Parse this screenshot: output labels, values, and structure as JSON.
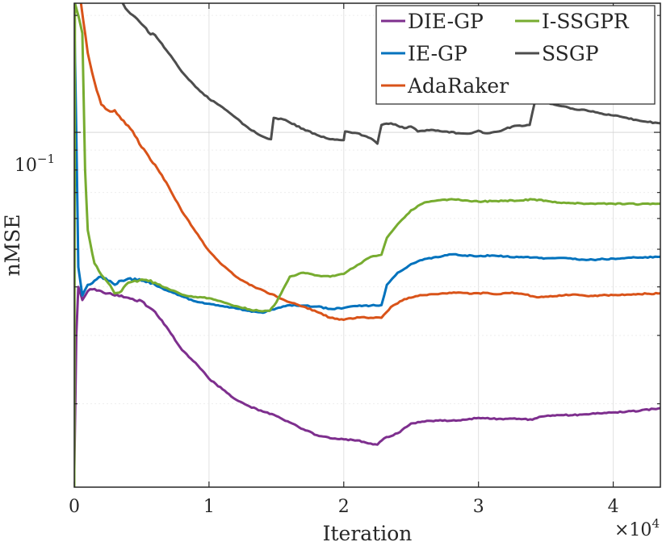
{
  "chart_data": {
    "type": "line",
    "xlabel": "Iteration",
    "ylabel": "nMSE",
    "x_scale_exponent_label": "×10",
    "x_scale_exponent": "4",
    "x_tick_values": [
      0,
      10000,
      20000,
      30000,
      40000
    ],
    "x_tick_labels": [
      "0",
      "1",
      "2",
      "3",
      "4"
    ],
    "y_tick_base": "10",
    "y_tick_exponent": "−1",
    "y_scale": "log",
    "xlim": [
      0,
      43500
    ],
    "ylim": [
      0.0122,
      0.215
    ],
    "grid": true,
    "legend_position": "top-right",
    "series": [
      {
        "name": "DIE-GP",
        "color": "#7E2F8E",
        "points": [
          [
            0,
            0.0135
          ],
          [
            150,
            0.03
          ],
          [
            300,
            0.04
          ],
          [
            600,
            0.037
          ],
          [
            1000,
            0.039
          ],
          [
            1500,
            0.0395
          ],
          [
            2000,
            0.039
          ],
          [
            2500,
            0.0385
          ],
          [
            3000,
            0.038
          ],
          [
            3500,
            0.038
          ],
          [
            4000,
            0.0375
          ],
          [
            5000,
            0.0368
          ],
          [
            5500,
            0.0355
          ],
          [
            6000,
            0.0345
          ],
          [
            7000,
            0.031
          ],
          [
            8000,
            0.0275
          ],
          [
            9000,
            0.0255
          ],
          [
            10000,
            0.0232
          ],
          [
            11000,
            0.0218
          ],
          [
            12000,
            0.0205
          ],
          [
            13000,
            0.0197
          ],
          [
            14000,
            0.0191
          ],
          [
            15000,
            0.0186
          ],
          [
            16000,
            0.0179
          ],
          [
            17000,
            0.0172
          ],
          [
            18000,
            0.0166
          ],
          [
            19000,
            0.0163
          ],
          [
            20000,
            0.0162
          ],
          [
            21000,
            0.0161
          ],
          [
            22000,
            0.0158
          ],
          [
            22500,
            0.0157
          ],
          [
            23000,
            0.0163
          ],
          [
            24000,
            0.0168
          ],
          [
            25000,
            0.0178
          ],
          [
            26000,
            0.018
          ],
          [
            27000,
            0.0181
          ],
          [
            28000,
            0.0181
          ],
          [
            29000,
            0.0182
          ],
          [
            30000,
            0.0184
          ],
          [
            31000,
            0.0183
          ],
          [
            32000,
            0.0183
          ],
          [
            33000,
            0.0183
          ],
          [
            34000,
            0.0182
          ],
          [
            34500,
            0.0185
          ],
          [
            35000,
            0.0186
          ],
          [
            36000,
            0.0187
          ],
          [
            37000,
            0.0187
          ],
          [
            38000,
            0.0188
          ],
          [
            39000,
            0.0189
          ],
          [
            40000,
            0.019
          ],
          [
            41000,
            0.0191
          ],
          [
            42000,
            0.0192
          ],
          [
            43000,
            0.0194
          ],
          [
            43500,
            0.0195
          ]
        ]
      },
      {
        "name": "IE-GP",
        "color": "#0072BD",
        "points": [
          [
            0,
            0.2
          ],
          [
            150,
            0.1
          ],
          [
            300,
            0.045
          ],
          [
            600,
            0.038
          ],
          [
            1000,
            0.0405
          ],
          [
            1500,
            0.0415
          ],
          [
            2000,
            0.0425
          ],
          [
            2500,
            0.0415
          ],
          [
            3000,
            0.0405
          ],
          [
            3500,
            0.0415
          ],
          [
            4000,
            0.042
          ],
          [
            5000,
            0.0415
          ],
          [
            6000,
            0.0405
          ],
          [
            7000,
            0.039
          ],
          [
            8000,
            0.0378
          ],
          [
            9000,
            0.0367
          ],
          [
            10000,
            0.0362
          ],
          [
            11000,
            0.0357
          ],
          [
            12000,
            0.0352
          ],
          [
            13000,
            0.0347
          ],
          [
            14000,
            0.0343
          ],
          [
            15000,
            0.0352
          ],
          [
            16000,
            0.0359
          ],
          [
            17000,
            0.0358
          ],
          [
            18000,
            0.0356
          ],
          [
            19000,
            0.0351
          ],
          [
            20000,
            0.0353
          ],
          [
            21000,
            0.0357
          ],
          [
            22000,
            0.0358
          ],
          [
            22800,
            0.0359
          ],
          [
            23200,
            0.0405
          ],
          [
            24000,
            0.0435
          ],
          [
            25000,
            0.0458
          ],
          [
            26000,
            0.0472
          ],
          [
            27000,
            0.0477
          ],
          [
            28000,
            0.0485
          ],
          [
            29000,
            0.0482
          ],
          [
            30000,
            0.048
          ],
          [
            31000,
            0.0482
          ],
          [
            32000,
            0.0479
          ],
          [
            33000,
            0.0477
          ],
          [
            34000,
            0.0476
          ],
          [
            35000,
            0.0474
          ],
          [
            36000,
            0.0475
          ],
          [
            37000,
            0.0472
          ],
          [
            38000,
            0.0469
          ],
          [
            39000,
            0.0471
          ],
          [
            40000,
            0.0473
          ],
          [
            41000,
            0.0475
          ],
          [
            42000,
            0.0476
          ],
          [
            43500,
            0.0478
          ]
        ]
      },
      {
        "name": "AdaRaker",
        "color": "#D95319",
        "points": [
          [
            500,
            0.215
          ],
          [
            1000,
            0.16
          ],
          [
            1500,
            0.135
          ],
          [
            2000,
            0.118
          ],
          [
            2500,
            0.114
          ],
          [
            3000,
            0.114
          ],
          [
            3500,
            0.108
          ],
          [
            4000,
            0.104
          ],
          [
            4500,
            0.098
          ],
          [
            5000,
            0.0915
          ],
          [
            5500,
            0.087
          ],
          [
            6000,
            0.0825
          ],
          [
            7000,
            0.0725
          ],
          [
            8000,
            0.0625
          ],
          [
            9000,
            0.0555
          ],
          [
            10000,
            0.0495
          ],
          [
            11000,
            0.0455
          ],
          [
            12000,
            0.0425
          ],
          [
            13000,
            0.0405
          ],
          [
            14000,
            0.0392
          ],
          [
            15000,
            0.0378
          ],
          [
            16000,
            0.0365
          ],
          [
            17000,
            0.0356
          ],
          [
            18000,
            0.0345
          ],
          [
            19000,
            0.0333
          ],
          [
            20000,
            0.0329
          ],
          [
            21000,
            0.0334
          ],
          [
            22000,
            0.0333
          ],
          [
            22800,
            0.0333
          ],
          [
            23500,
            0.0355
          ],
          [
            24500,
            0.0372
          ],
          [
            25500,
            0.0379
          ],
          [
            26500,
            0.0383
          ],
          [
            27500,
            0.0385
          ],
          [
            28500,
            0.0387
          ],
          [
            29500,
            0.0384
          ],
          [
            30500,
            0.0386
          ],
          [
            31500,
            0.0383
          ],
          [
            32500,
            0.0387
          ],
          [
            33500,
            0.0382
          ],
          [
            34500,
            0.0376
          ],
          [
            35500,
            0.0378
          ],
          [
            36500,
            0.0382
          ],
          [
            37500,
            0.0381
          ],
          [
            38500,
            0.0379
          ],
          [
            39500,
            0.0381
          ],
          [
            40500,
            0.0381
          ],
          [
            41500,
            0.0383
          ],
          [
            42500,
            0.0384
          ],
          [
            43500,
            0.0385
          ]
        ]
      },
      {
        "name": "I-SSGPR",
        "color": "#77AC30",
        "points": [
          [
            0,
            0.0122
          ],
          [
            50,
            0.215
          ],
          [
            300,
            0.2
          ],
          [
            600,
            0.18
          ],
          [
            800,
            0.08
          ],
          [
            1000,
            0.056
          ],
          [
            1500,
            0.046
          ],
          [
            2000,
            0.043
          ],
          [
            2500,
            0.041
          ],
          [
            3000,
            0.0385
          ],
          [
            3500,
            0.039
          ],
          [
            4000,
            0.041
          ],
          [
            4500,
            0.0415
          ],
          [
            5000,
            0.0418
          ],
          [
            6000,
            0.041
          ],
          [
            7000,
            0.0395
          ],
          [
            8000,
            0.0382
          ],
          [
            9000,
            0.0377
          ],
          [
            10000,
            0.0374
          ],
          [
            11000,
            0.0366
          ],
          [
            12000,
            0.0357
          ],
          [
            13000,
            0.035
          ],
          [
            14000,
            0.0346
          ],
          [
            14500,
            0.0347
          ],
          [
            15000,
            0.0365
          ],
          [
            16000,
            0.0425
          ],
          [
            17000,
            0.0435
          ],
          [
            18000,
            0.0428
          ],
          [
            19000,
            0.0425
          ],
          [
            20000,
            0.0432
          ],
          [
            21000,
            0.0455
          ],
          [
            22000,
            0.0478
          ],
          [
            22800,
            0.0484
          ],
          [
            23200,
            0.0535
          ],
          [
            24000,
            0.058
          ],
          [
            25000,
            0.063
          ],
          [
            26000,
            0.066
          ],
          [
            27000,
            0.0668
          ],
          [
            28000,
            0.0673
          ],
          [
            29000,
            0.0668
          ],
          [
            30000,
            0.0663
          ],
          [
            31000,
            0.0665
          ],
          [
            32000,
            0.0667
          ],
          [
            33000,
            0.0667
          ],
          [
            34000,
            0.0672
          ],
          [
            35000,
            0.0667
          ],
          [
            36000,
            0.0659
          ],
          [
            37000,
            0.0657
          ],
          [
            38000,
            0.0655
          ],
          [
            39000,
            0.0656
          ],
          [
            40000,
            0.0655
          ],
          [
            41000,
            0.0655
          ],
          [
            42000,
            0.0653
          ],
          [
            43500,
            0.0655
          ]
        ]
      },
      {
        "name": "SSGP",
        "color": "#4D4D4D",
        "points": [
          [
            3600,
            0.215
          ],
          [
            4000,
            0.205
          ],
          [
            5000,
            0.19
          ],
          [
            5500,
            0.181
          ],
          [
            6000,
            0.178
          ],
          [
            7000,
            0.16
          ],
          [
            8000,
            0.143
          ],
          [
            9000,
            0.131
          ],
          [
            10000,
            0.122
          ],
          [
            11000,
            0.116
          ],
          [
            12000,
            0.109
          ],
          [
            13000,
            0.102
          ],
          [
            14000,
            0.0975
          ],
          [
            14600,
            0.096
          ],
          [
            14800,
            0.109
          ],
          [
            15500,
            0.108
          ],
          [
            16000,
            0.106
          ],
          [
            17000,
            0.102
          ],
          [
            18000,
            0.0985
          ],
          [
            19000,
            0.096
          ],
          [
            20000,
            0.0955
          ],
          [
            20100,
            0.1005
          ],
          [
            21000,
            0.0995
          ],
          [
            22000,
            0.0965
          ],
          [
            22500,
            0.0935
          ],
          [
            22800,
            0.1045
          ],
          [
            23500,
            0.1055
          ],
          [
            24500,
            0.1025
          ],
          [
            25000,
            0.1035
          ],
          [
            25500,
            0.1005
          ],
          [
            26500,
            0.1015
          ],
          [
            27500,
            0.1005
          ],
          [
            28500,
            0.0995
          ],
          [
            29500,
            0.0995
          ],
          [
            30000,
            0.101
          ],
          [
            30500,
            0.0995
          ],
          [
            31500,
            0.1005
          ],
          [
            32500,
            0.1035
          ],
          [
            33800,
            0.1045
          ],
          [
            34200,
            0.1205
          ],
          [
            35000,
            0.1195
          ],
          [
            36000,
            0.117
          ],
          [
            37000,
            0.115
          ],
          [
            38000,
            0.114
          ],
          [
            39000,
            0.112
          ],
          [
            40000,
            0.1105
          ],
          [
            41000,
            0.109
          ],
          [
            42000,
            0.107
          ],
          [
            43500,
            0.1055
          ]
        ]
      }
    ]
  }
}
